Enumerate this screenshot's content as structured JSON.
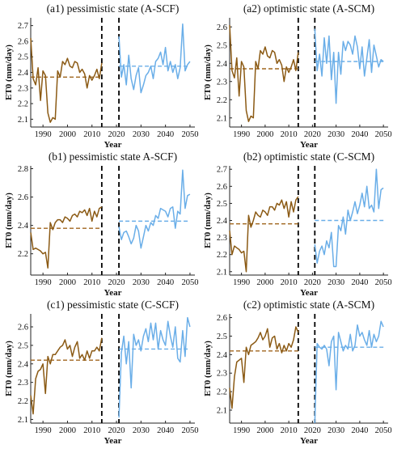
{
  "chart_data": [
    {
      "type": "line",
      "title": "(a1) pessimistic state (A-SCF)",
      "xlabel": "Year",
      "ylabel": "ET0 (mm/day)",
      "xlim": [
        1985,
        2052
      ],
      "ylim": [
        2.05,
        2.75
      ],
      "yticks": [
        2.1,
        2.2,
        2.3,
        2.4,
        2.5,
        2.6,
        2.7
      ],
      "xticks": [
        1990,
        2000,
        2010,
        2020,
        2030,
        2040,
        2050
      ],
      "divider_years": [
        2014,
        2021
      ],
      "series": [
        {
          "period": "historical",
          "color": "#8b5a14",
          "x_start": 1985,
          "values": [
            2.62,
            2.36,
            2.32,
            2.43,
            2.22,
            2.41,
            2.38,
            2.14,
            2.08,
            2.11,
            2.1,
            2.41,
            2.37,
            2.47,
            2.45,
            2.49,
            2.44,
            2.43,
            2.47,
            2.46,
            2.4,
            2.42,
            2.39,
            2.3,
            2.38,
            2.35,
            2.38,
            2.42,
            2.36,
            2.46
          ],
          "mean": 2.37,
          "mean_color": "#a0661e"
        },
        {
          "period": "future",
          "color": "#6aaee8",
          "x_start": 2021,
          "values": [
            2.63,
            2.37,
            2.45,
            2.32,
            2.51,
            2.36,
            2.29,
            2.38,
            2.43,
            2.27,
            2.32,
            2.38,
            2.4,
            2.44,
            2.36,
            2.47,
            2.49,
            2.53,
            2.45,
            2.56,
            2.41,
            2.47,
            2.4,
            2.45,
            2.36,
            2.43,
            2.71,
            2.41,
            2.45,
            2.47
          ],
          "mean": 2.44,
          "mean_color": "#6aaee8"
        }
      ]
    },
    {
      "type": "line",
      "title": "(a2) optimistic state (A-SCM)",
      "xlabel": "Year",
      "ylabel": "ET0 (mm/day)",
      "xlim": [
        1985,
        2052
      ],
      "ylim": [
        2.05,
        2.65
      ],
      "yticks": [
        2.1,
        2.2,
        2.3,
        2.4,
        2.5,
        2.6
      ],
      "xticks": [
        1990,
        2000,
        2010,
        2020,
        2030,
        2040,
        2050
      ],
      "divider_years": [
        2014,
        2021
      ],
      "series": [
        {
          "period": "historical",
          "color": "#8b5a14",
          "x_start": 1985,
          "values": [
            2.61,
            2.36,
            2.32,
            2.43,
            2.22,
            2.41,
            2.38,
            2.14,
            2.08,
            2.11,
            2.1,
            2.41,
            2.37,
            2.47,
            2.45,
            2.49,
            2.44,
            2.43,
            2.47,
            2.46,
            2.4,
            2.42,
            2.39,
            2.3,
            2.38,
            2.35,
            2.38,
            2.42,
            2.36,
            2.46
          ],
          "mean": 2.37,
          "mean_color": "#a0661e"
        },
        {
          "period": "future",
          "color": "#6aaee8",
          "x_start": 2021,
          "values": [
            2.59,
            2.36,
            2.45,
            2.33,
            2.54,
            2.4,
            2.55,
            2.31,
            2.46,
            2.18,
            2.46,
            2.34,
            2.52,
            2.47,
            2.52,
            2.5,
            2.45,
            2.55,
            2.49,
            2.37,
            2.49,
            2.33,
            2.43,
            2.53,
            2.35,
            2.5,
            2.44,
            2.38,
            2.42,
            2.41
          ],
          "mean": 2.41,
          "mean_color": "#6aaee8"
        }
      ]
    },
    {
      "type": "line",
      "title": "(b1) pessimistic state A-SCF)",
      "xlabel": "Year",
      "ylabel": "ET0 (mm/day)",
      "xlim": [
        1985,
        2052
      ],
      "ylim": [
        2.05,
        2.82
      ],
      "yticks": [
        2.2,
        2.4,
        2.6,
        2.8
      ],
      "xticks": [
        1990,
        2000,
        2010,
        2020,
        2030,
        2040,
        2050
      ],
      "divider_years": [
        2014,
        2021
      ],
      "series": [
        {
          "period": "historical",
          "color": "#8b5a14",
          "x_start": 1985,
          "values": [
            2.35,
            2.23,
            2.24,
            2.23,
            2.22,
            2.2,
            2.21,
            2.1,
            2.42,
            2.37,
            2.42,
            2.44,
            2.44,
            2.42,
            2.46,
            2.45,
            2.43,
            2.47,
            2.48,
            2.46,
            2.5,
            2.49,
            2.51,
            2.47,
            2.52,
            2.43,
            2.5,
            2.46,
            2.52,
            2.53
          ],
          "mean": 2.38,
          "mean_color": "#a0661e"
        },
        {
          "period": "future",
          "color": "#6aaee8",
          "x_start": 2021,
          "values": [
            2.39,
            2.3,
            2.35,
            2.36,
            2.32,
            2.27,
            2.31,
            2.4,
            2.36,
            2.24,
            2.32,
            2.4,
            2.36,
            2.42,
            2.4,
            2.47,
            2.45,
            2.52,
            2.51,
            2.5,
            2.46,
            2.52,
            2.53,
            2.38,
            2.5,
            2.48,
            2.79,
            2.52,
            2.61,
            2.62
          ],
          "mean": 2.43,
          "mean_color": "#6aaee8"
        }
      ]
    },
    {
      "type": "line",
      "title": "(b2) optimistic state (C-SCM)",
      "xlabel": "Year",
      "ylabel": "ET0 (mm/day)",
      "xlim": [
        1985,
        2052
      ],
      "ylim": [
        2.08,
        2.72
      ],
      "yticks": [
        2.1,
        2.2,
        2.3,
        2.4,
        2.5,
        2.6,
        2.7
      ],
      "xticks": [
        1990,
        2000,
        2010,
        2020,
        2030,
        2040,
        2050
      ],
      "divider_years": [
        2014,
        2021
      ],
      "series": [
        {
          "period": "historical",
          "color": "#8b5a14",
          "x_start": 1985,
          "values": [
            2.34,
            2.2,
            2.25,
            2.24,
            2.23,
            2.21,
            2.22,
            2.1,
            2.43,
            2.36,
            2.4,
            2.45,
            2.43,
            2.42,
            2.46,
            2.45,
            2.43,
            2.48,
            2.48,
            2.46,
            2.5,
            2.49,
            2.52,
            2.47,
            2.51,
            2.42,
            2.51,
            2.45,
            2.52,
            2.54
          ],
          "mean": 2.38,
          "mean_color": "#a0661e"
        },
        {
          "period": "future",
          "color": "#6aaee8",
          "x_start": 2021,
          "values": [
            2.26,
            2.15,
            2.22,
            2.25,
            2.2,
            2.28,
            2.24,
            2.33,
            2.13,
            2.13,
            2.37,
            2.34,
            2.42,
            2.32,
            2.46,
            2.4,
            2.45,
            2.51,
            2.44,
            2.49,
            2.56,
            2.48,
            2.6,
            2.47,
            2.49,
            2.45,
            2.7,
            2.47,
            2.58,
            2.59
          ],
          "mean": 2.4,
          "mean_color": "#6aaee8"
        }
      ]
    },
    {
      "type": "line",
      "title": "(c1) pessimistic state (C-SCF)",
      "xlabel": "Year",
      "ylabel": "ET0 (mm/day)",
      "xlim": [
        1985,
        2052
      ],
      "ylim": [
        2.08,
        2.67
      ],
      "yticks": [
        2.1,
        2.2,
        2.3,
        2.4,
        2.5,
        2.6
      ],
      "xticks": [
        1990,
        2000,
        2010,
        2020,
        2030,
        2040,
        2050
      ],
      "divider_years": [
        2014,
        2021
      ],
      "series": [
        {
          "period": "historical",
          "color": "#8b5a14",
          "x_start": 1985,
          "values": [
            2.23,
            2.13,
            2.32,
            2.36,
            2.37,
            2.4,
            2.24,
            2.44,
            2.4,
            2.45,
            2.45,
            2.47,
            2.49,
            2.5,
            2.53,
            2.48,
            2.5,
            2.44,
            2.49,
            2.52,
            2.43,
            2.45,
            2.42,
            2.47,
            2.43,
            2.47,
            2.47,
            2.49,
            2.47,
            2.54
          ],
          "mean": 2.42,
          "mean_color": "#a0661e"
        },
        {
          "period": "future",
          "color": "#6aaee8",
          "x_start": 2021,
          "values": [
            2.11,
            2.46,
            2.55,
            2.4,
            2.52,
            2.27,
            2.56,
            2.5,
            2.53,
            2.47,
            2.55,
            2.59,
            2.52,
            2.62,
            2.53,
            2.62,
            2.48,
            2.58,
            2.53,
            2.5,
            2.63,
            2.55,
            2.49,
            2.6,
            2.43,
            2.41,
            2.58,
            2.44,
            2.65,
            2.6
          ],
          "mean": 2.48,
          "mean_color": "#6aaee8"
        }
      ]
    },
    {
      "type": "line",
      "title": "(c2) optimistic state (A-SCM)",
      "xlabel": "Year",
      "ylabel": "ET0 (mm/day)",
      "xlim": [
        1985,
        2052
      ],
      "ylim": [
        2.03,
        2.62
      ],
      "yticks": [
        2.1,
        2.2,
        2.3,
        2.4,
        2.5,
        2.6
      ],
      "xticks": [
        1990,
        2000,
        2010,
        2020,
        2030,
        2040,
        2050
      ],
      "divider_years": [
        2014,
        2021
      ],
      "series": [
        {
          "period": "historical",
          "color": "#8b5a14",
          "x_start": 1985,
          "values": [
            2.22,
            2.11,
            2.28,
            2.36,
            2.37,
            2.38,
            2.25,
            2.44,
            2.4,
            2.45,
            2.46,
            2.47,
            2.49,
            2.52,
            2.48,
            2.5,
            2.54,
            2.44,
            2.49,
            2.5,
            2.43,
            2.46,
            2.41,
            2.45,
            2.42,
            2.46,
            2.44,
            2.48,
            2.55,
            2.52
          ],
          "mean": 2.42,
          "mean_color": "#a0661e"
        },
        {
          "period": "future",
          "color": "#6aaee8",
          "x_start": 2021,
          "values": [
            2.03,
            2.46,
            2.44,
            2.43,
            2.45,
            2.43,
            2.34,
            2.47,
            2.5,
            2.21,
            2.52,
            2.47,
            2.42,
            2.45,
            2.43,
            2.51,
            2.42,
            2.45,
            2.56,
            2.5,
            2.52,
            2.48,
            2.45,
            2.53,
            2.44,
            2.51,
            2.47,
            2.5,
            2.58,
            2.55
          ],
          "mean": 2.44,
          "mean_color": "#6aaee8"
        }
      ]
    }
  ]
}
